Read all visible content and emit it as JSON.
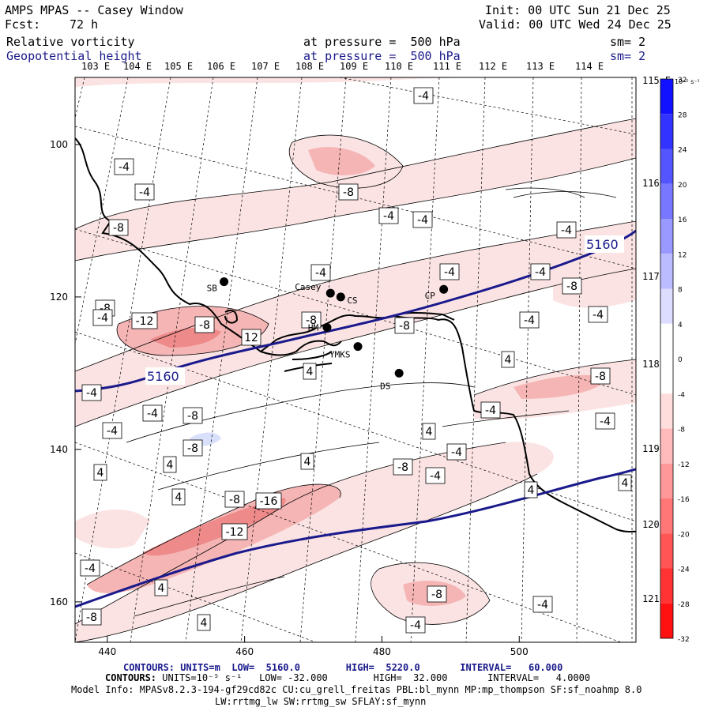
{
  "header": {
    "title": "AMPS MPAS -- Casey Window",
    "fcst_label": "Fcst:",
    "fcst_value": "72 h",
    "init": "Init: 00 UTC Sun 21 Dec 25",
    "valid": "Valid: 00 UTC Wed 24 Dec 25",
    "field1_name": "Relative vorticity",
    "field1_level": "at pressure =  500 hPa",
    "field1_sm": "sm= 2",
    "field2_name": "Geopotential height",
    "field2_level": "at pressure =  500 hPa",
    "field2_sm": "sm= 2"
  },
  "colors": {
    "height_contour": "#1a1a8c",
    "coast": "#000000",
    "neg_light": "#fbe3e3",
    "neg_mid": "#f5b5b5",
    "neg_strong": "#ee8a8a",
    "pos_light": "#d8e0fb"
  },
  "chart_data": {
    "type": "contour-map",
    "x_ticks": [
      "440",
      "460",
      "480",
      "500"
    ],
    "y_ticks": [
      "100",
      "120",
      "140",
      "160"
    ],
    "top_lon_labels": [
      "103 E",
      "104 E",
      "105 E",
      "106 E",
      "107 E",
      "108 E",
      "109 E",
      "110 E",
      "111 E",
      "112 E",
      "113 E",
      "114 E"
    ],
    "right_lon_labels": [
      "115 E",
      "116 E",
      "117 E",
      "118 E",
      "119 E",
      "120 E",
      "121 E"
    ],
    "colorbar": {
      "unit": "10⁻⁵ s⁻¹",
      "min": -32,
      "max": 32,
      "interval": 4,
      "tick_labels": [
        "32",
        "28",
        "24",
        "20",
        "16",
        "12",
        "8",
        "4",
        "0",
        "-4",
        "-8",
        "-12",
        "-16",
        "-20",
        "-24",
        "-28",
        "-32"
      ]
    },
    "height_contour_labels": [
      "5160",
      "5160"
    ],
    "vorticity_labels": [
      "-4",
      "-4",
      "-4",
      "-8",
      "-4",
      "-4",
      "-8",
      "-4",
      "-4",
      "-4",
      "-4",
      "-8",
      "-8",
      "-12",
      "-8",
      "12",
      "-8",
      "-8",
      "-4",
      "-4",
      "-4",
      "4",
      "-4",
      "-8",
      "-4",
      "-8",
      "-4",
      "4",
      "-4",
      "-4",
      "4",
      "-8",
      "4",
      "4",
      "4",
      "-8",
      "-4",
      "4",
      "-8",
      "-16",
      "-12",
      "-4",
      "4",
      "-4",
      "-8",
      "-4",
      "4",
      "-8",
      "4",
      "-4",
      "4"
    ],
    "stations": [
      {
        "name": "SB",
        "x": 457.0,
        "y": 118.0
      },
      {
        "name": "Casey",
        "x": 472.5,
        "y": 119.5
      },
      {
        "name": "CS",
        "x": 474.0,
        "y": 120.0
      },
      {
        "name": "CP",
        "x": 489.0,
        "y": 119.0
      },
      {
        "name": "HM",
        "x": 472.0,
        "y": 124.0
      },
      {
        "name": "YMKS",
        "x": 476.5,
        "y": 126.5
      },
      {
        "name": "DS",
        "x": 482.5,
        "y": 130.0
      }
    ]
  },
  "footer": {
    "line1_label": "CONTOURS:",
    "line1_text": "UNITS=m  LOW=  5160.0        HIGH=  5220.0       INTERVAL=   60.000",
    "line2_label": "CONTOURS:",
    "line2_text": "UNITS=10⁻⁵ s⁻¹   LOW= -32.000        HIGH=  32.000       INTERVAL=   4.0000",
    "line3": "Model Info: MPASv8.2.3-194-gf29cd82c CU:cu_grell_freitas PBL:bl_mynn MP:mp_thompson SF:sf_noahmp 8.0",
    "line4": "LW:rrtmg_lw SW:rrtmg_sw SFLAY:sf_mynn"
  }
}
